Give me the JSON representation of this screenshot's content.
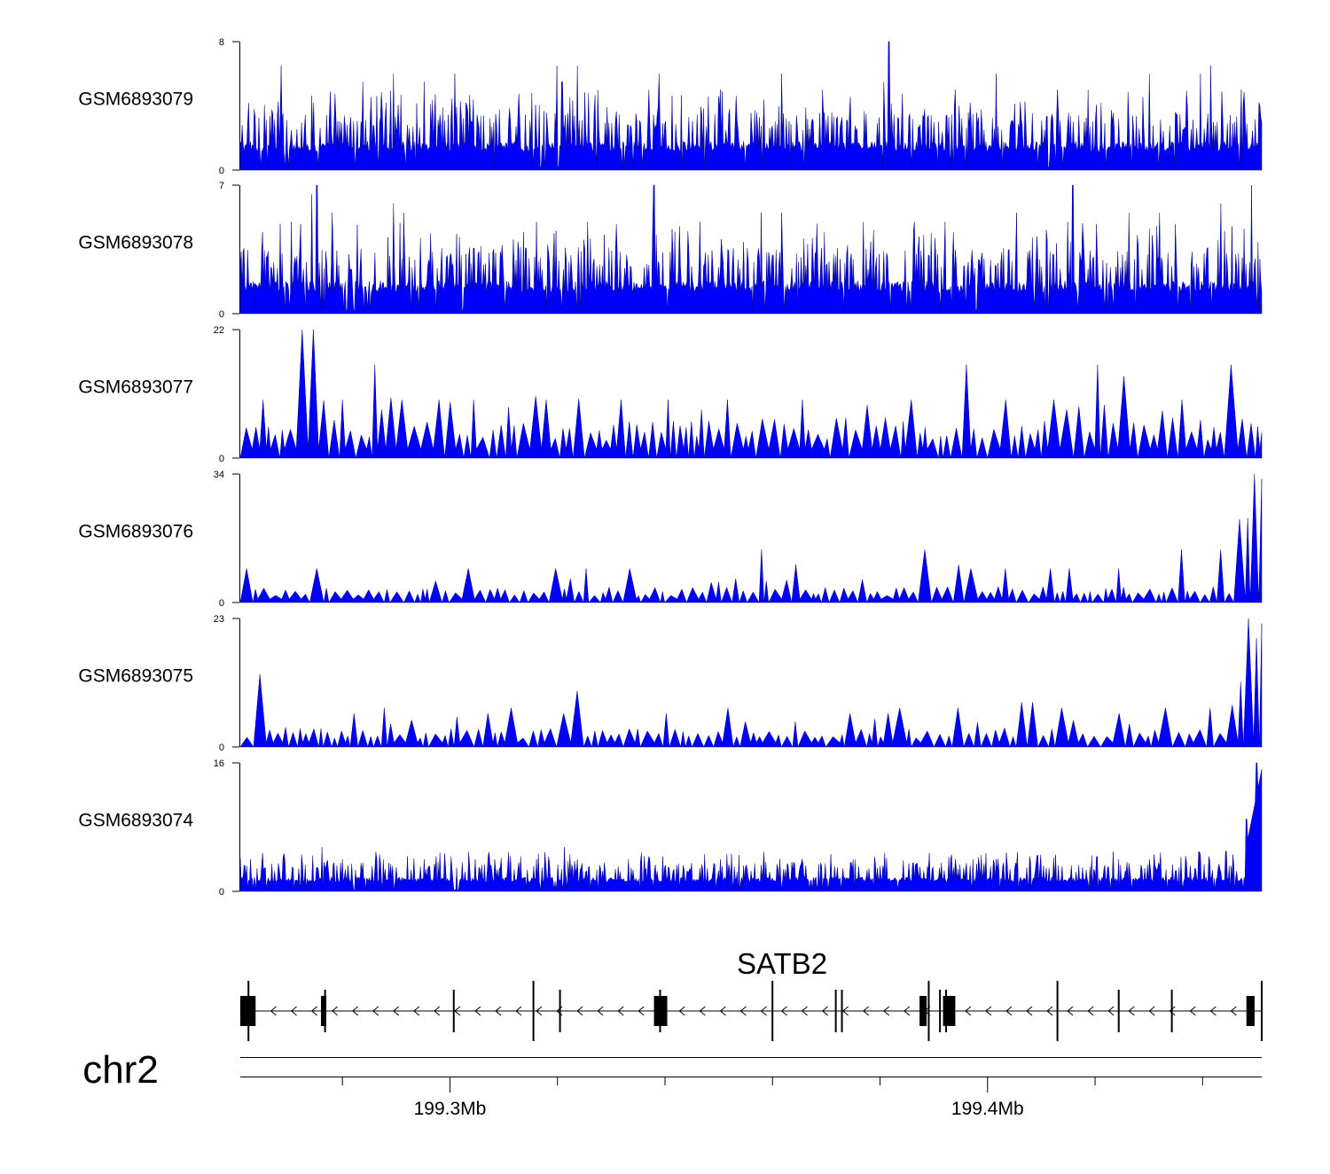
{
  "chart_data": {
    "type": "area",
    "title": "",
    "colors": {
      "signal": "#0000ff",
      "axis": "#000000",
      "gene": "#000000"
    },
    "tracks": [
      {
        "name": "GSM6893079",
        "ymax": 8,
        "ymin": 0,
        "ymax_label": "8",
        "ymin_label": "0",
        "baseline": 1.5,
        "style": "spiky",
        "peaks": [
          [
            0.04,
            6.5
          ],
          [
            0.12,
            5.5
          ],
          [
            0.15,
            6
          ],
          [
            0.18,
            5.5
          ],
          [
            0.21,
            6
          ],
          [
            0.31,
            6.5
          ],
          [
            0.315,
            5.5
          ],
          [
            0.33,
            6.5
          ],
          [
            0.35,
            5
          ],
          [
            0.4,
            5
          ],
          [
            0.41,
            6
          ],
          [
            0.47,
            5
          ],
          [
            0.53,
            6
          ],
          [
            0.57,
            5
          ],
          [
            0.63,
            5.5
          ],
          [
            0.635,
            8
          ],
          [
            0.7,
            5
          ],
          [
            0.74,
            6
          ],
          [
            0.8,
            5
          ],
          [
            0.83,
            5
          ],
          [
            0.89,
            6
          ],
          [
            0.94,
            6
          ],
          [
            0.95,
            6.5
          ],
          [
            0.98,
            5
          ]
        ]
      },
      {
        "name": "GSM6893078",
        "ymax": 7,
        "ymin": 0,
        "ymax_label": "7",
        "ymin_label": "0",
        "baseline": 1.5,
        "style": "spiky",
        "peaks": [
          [
            0.05,
            5
          ],
          [
            0.07,
            6.5
          ],
          [
            0.075,
            7
          ],
          [
            0.09,
            5.5
          ],
          [
            0.15,
            6
          ],
          [
            0.16,
            5.5
          ],
          [
            0.29,
            5
          ],
          [
            0.34,
            5
          ],
          [
            0.405,
            7
          ],
          [
            0.45,
            5
          ],
          [
            0.51,
            5.5
          ],
          [
            0.53,
            5.5
          ],
          [
            0.61,
            5
          ],
          [
            0.66,
            5
          ],
          [
            0.69,
            5
          ],
          [
            0.76,
            5.5
          ],
          [
            0.81,
            5
          ],
          [
            0.815,
            7
          ],
          [
            0.87,
            5.5
          ],
          [
            0.9,
            5.5
          ],
          [
            0.96,
            6
          ],
          [
            0.99,
            7
          ]
        ]
      },
      {
        "name": "GSM6893077",
        "ymax": 22,
        "ymin": 0,
        "ymax_label": "22",
        "ymin_label": "0",
        "baseline": 5,
        "style": "triangle",
        "peaks": [
          [
            0.02,
            10
          ],
          [
            0.061,
            22
          ],
          [
            0.067,
            17
          ],
          [
            0.075,
            22
          ],
          [
            0.1,
            10
          ],
          [
            0.13,
            16
          ],
          [
            0.16,
            10
          ],
          [
            0.19,
            10
          ],
          [
            0.23,
            10
          ],
          [
            0.3,
            10
          ],
          [
            0.37,
            10
          ],
          [
            0.42,
            10
          ],
          [
            0.48,
            10
          ],
          [
            0.55,
            10
          ],
          [
            0.66,
            10
          ],
          [
            0.71,
            16
          ],
          [
            0.75,
            10
          ],
          [
            0.8,
            10
          ],
          [
            0.84,
            16
          ],
          [
            0.87,
            14
          ],
          [
            0.92,
            10
          ],
          [
            0.97,
            16
          ]
        ]
      },
      {
        "name": "GSM6893076",
        "ymax": 34,
        "ymin": 0,
        "ymax_label": "34",
        "ymin_label": "0",
        "baseline": 3,
        "style": "triangle",
        "peaks": [
          [
            0.01,
            9
          ],
          [
            0.08,
            9
          ],
          [
            0.22,
            9
          ],
          [
            0.31,
            9
          ],
          [
            0.34,
            9
          ],
          [
            0.38,
            9
          ],
          [
            0.51,
            14
          ],
          [
            0.54,
            10
          ],
          [
            0.67,
            12
          ],
          [
            0.675,
            14
          ],
          [
            0.7,
            10
          ],
          [
            0.72,
            9
          ],
          [
            0.75,
            9
          ],
          [
            0.79,
            9
          ],
          [
            0.81,
            9
          ],
          [
            0.86,
            9
          ],
          [
            0.92,
            14
          ],
          [
            0.96,
            14
          ],
          [
            0.975,
            22
          ],
          [
            0.99,
            34
          ]
        ]
      },
      {
        "name": "GSM6893075",
        "ymax": 23,
        "ymin": 0,
        "ymax_label": "23",
        "ymin_label": "0",
        "baseline": 2.5,
        "style": "triangle",
        "peaks": [
          [
            0.025,
            13
          ],
          [
            0.11,
            6
          ],
          [
            0.14,
            7
          ],
          [
            0.24,
            6
          ],
          [
            0.27,
            7
          ],
          [
            0.31,
            6
          ],
          [
            0.335,
            10
          ],
          [
            0.42,
            6
          ],
          [
            0.48,
            7
          ],
          [
            0.6,
            6
          ],
          [
            0.63,
            6
          ],
          [
            0.65,
            7
          ],
          [
            0.7,
            7
          ],
          [
            0.77,
            8
          ],
          [
            0.78,
            8
          ],
          [
            0.81,
            7
          ],
          [
            0.86,
            6
          ],
          [
            0.9,
            7
          ],
          [
            0.95,
            7
          ],
          [
            0.99,
            23
          ]
        ]
      },
      {
        "name": "GSM6893074",
        "ymax": 16,
        "ymin": 0,
        "ymax_label": "16",
        "ymin_label": "0",
        "baseline": 1.5,
        "style": "spiky",
        "peaks": [
          [
            0.01,
            4
          ],
          [
            0.08,
            5.5
          ],
          [
            0.1,
            4
          ],
          [
            0.14,
            4
          ],
          [
            0.18,
            4
          ],
          [
            0.23,
            4
          ],
          [
            0.29,
            4
          ],
          [
            0.317,
            5.5
          ],
          [
            0.33,
            4
          ],
          [
            0.38,
            4
          ],
          [
            0.47,
            4
          ],
          [
            0.55,
            4
          ],
          [
            0.6,
            4
          ],
          [
            0.7,
            4
          ],
          [
            0.74,
            4
          ],
          [
            0.78,
            4.5
          ],
          [
            0.86,
            4
          ],
          [
            0.89,
            4
          ],
          [
            0.94,
            4.5
          ],
          [
            0.965,
            5
          ],
          [
            0.985,
            9
          ],
          [
            0.995,
            16
          ]
        ]
      }
    ],
    "gene": {
      "label": "SATB2",
      "strand": "-",
      "exons": [
        0.008,
        0.083,
        0.209,
        0.287,
        0.313,
        0.411,
        0.521,
        0.583,
        0.589,
        0.674,
        0.685,
        0.691,
        0.8,
        0.86,
        0.912,
        1.0
      ]
    },
    "axis": {
      "chromosome": "chr2",
      "range_mb": [
        199.261,
        199.451
      ],
      "major_ticks": [
        {
          "value": 199.3,
          "label": "199.3Mb"
        },
        {
          "value": 199.4,
          "label": "199.4Mb"
        }
      ],
      "minor_ticks": [
        199.28,
        199.32,
        199.34,
        199.36,
        199.38,
        199.42,
        199.44
      ]
    }
  }
}
